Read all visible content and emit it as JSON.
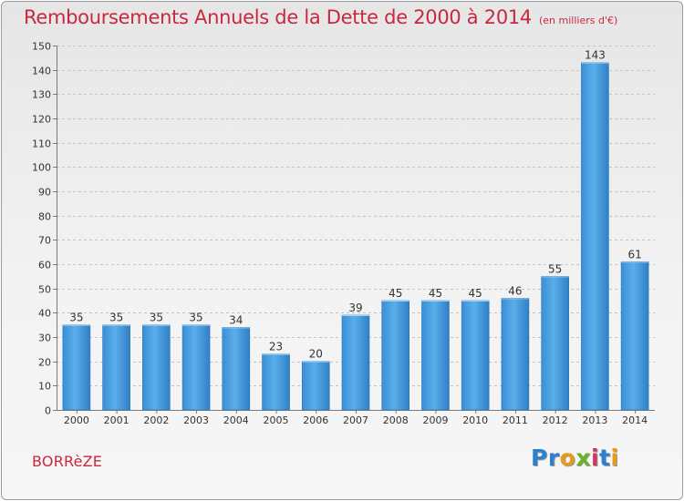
{
  "chart_data": {
    "type": "bar",
    "title": "Remboursements Annuels de la Dette de 2000 à 2014",
    "unit_label": "(en milliers d'€)",
    "categories": [
      "2000",
      "2001",
      "2002",
      "2003",
      "2004",
      "2005",
      "2006",
      "2007",
      "2008",
      "2009",
      "2010",
      "2011",
      "2012",
      "2013",
      "2014"
    ],
    "values": [
      35,
      35,
      35,
      35,
      34,
      23,
      20,
      39,
      45,
      45,
      45,
      46,
      55,
      143,
      61
    ],
    "ylim": [
      0,
      150
    ],
    "yticks": [
      0,
      10,
      20,
      30,
      40,
      50,
      60,
      70,
      80,
      90,
      100,
      110,
      120,
      130,
      140,
      150
    ],
    "grid": true,
    "xlabel": "",
    "ylabel": "",
    "bar_color": "#4fa3e3"
  },
  "footer": {
    "town": "BORRèZE",
    "logo": "Proxiti"
  }
}
